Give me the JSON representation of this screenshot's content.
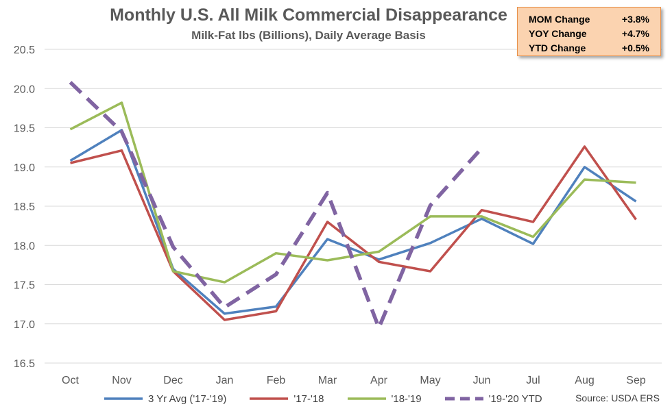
{
  "chart_data": {
    "type": "line",
    "title": "Monthly U.S. All Milk Commercial Disappearance",
    "subtitle": "Milk-Fat lbs (Billions), Daily Average Basis",
    "categories": [
      "Oct",
      "Nov",
      "Dec",
      "Jan",
      "Feb",
      "Mar",
      "Apr",
      "May",
      "Jun",
      "Jul",
      "Aug",
      "Sep"
    ],
    "ylim": [
      16.5,
      20.5
    ],
    "yticks": [
      "20.5",
      "20.0",
      "19.5",
      "19.0",
      "18.5",
      "18.0",
      "17.5",
      "17.0",
      "16.5"
    ],
    "grid": true,
    "legend_position": "bottom",
    "series": [
      {
        "name": "3 Yr Avg ('17-'19)",
        "color": "#4f81bd",
        "style": "solid",
        "values": [
          19.08,
          19.47,
          17.7,
          17.13,
          17.22,
          18.08,
          17.82,
          18.03,
          18.34,
          18.02,
          19.0,
          18.56
        ]
      },
      {
        "name": "'17-'18",
        "color": "#c0504d",
        "style": "solid",
        "values": [
          19.05,
          19.21,
          17.67,
          17.05,
          17.16,
          18.3,
          17.79,
          17.67,
          18.45,
          18.3,
          19.26,
          18.33
        ]
      },
      {
        "name": "'18-'19",
        "color": "#9bbb59",
        "style": "solid",
        "values": [
          19.48,
          19.82,
          17.67,
          17.53,
          17.9,
          17.81,
          17.92,
          18.37,
          18.37,
          18.11,
          18.84,
          18.8
        ]
      },
      {
        "name": "'19-'20 YTD",
        "color": "#8064a2",
        "style": "dashed",
        "values": [
          20.08,
          19.45,
          17.98,
          17.21,
          17.63,
          18.67,
          16.95,
          18.51,
          19.24,
          null,
          null,
          null
        ]
      }
    ]
  },
  "stats": [
    {
      "label": "MOM Change",
      "value": "+3.8%"
    },
    {
      "label": "YOY Change",
      "value": "+4.7%"
    },
    {
      "label": "YTD Change",
      "value": "+0.5%"
    }
  ],
  "source": "Source: USDA ERS"
}
